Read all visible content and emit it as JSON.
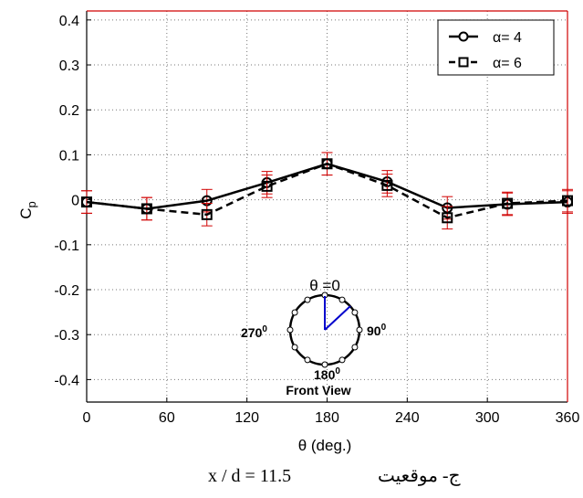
{
  "chart_data": {
    "type": "line",
    "xlabel": "θ (deg.)",
    "ylabel": "C",
    "ylabel_sub": "p",
    "xlim": [
      0,
      360
    ],
    "ylim": [
      -0.45,
      0.42
    ],
    "xticks": [
      0,
      60,
      120,
      180,
      240,
      300,
      360
    ],
    "xtick_labels": [
      "0",
      "60",
      "120",
      "180",
      "240",
      "300",
      "360"
    ],
    "yticks": [
      0.4,
      0.3,
      0.2,
      0.1,
      0,
      -0.1,
      -0.2,
      -0.3,
      -0.4
    ],
    "ytick_labels": [
      "0.4",
      "0.3",
      "0.2",
      "0.1",
      "0",
      "-0.1",
      "-0.2",
      "-0.3",
      "-0.4"
    ],
    "grid": true,
    "legend_position": "top-right",
    "series": [
      {
        "name": "α= 4",
        "marker": "circle",
        "line_style": "solid",
        "x": [
          0,
          45,
          90,
          135,
          180,
          225,
          270,
          315,
          360
        ],
        "y": [
          -0.005,
          -0.02,
          -0.002,
          0.038,
          0.08,
          0.04,
          -0.018,
          -0.01,
          -0.005
        ],
        "error": [
          0.025,
          0.025,
          0.025,
          0.025,
          0.025,
          0.025,
          0.025,
          0.025,
          0.025
        ]
      },
      {
        "name": "α= 6",
        "marker": "square",
        "line_style": "dashed",
        "x": [
          0,
          45,
          90,
          135,
          180,
          225,
          270,
          315,
          360
        ],
        "y": [
          -0.005,
          -0.02,
          -0.033,
          0.03,
          0.08,
          0.032,
          -0.04,
          -0.008,
          -0.002
        ],
        "error": [
          0.025,
          0.025,
          0.025,
          0.025,
          0.025,
          0.025,
          0.025,
          0.025,
          0.025
        ]
      }
    ],
    "colors": {
      "line": "#000000",
      "error_bar": "#d00000",
      "inset_radius": "#0000cc"
    },
    "inset": {
      "top_label": "θ =0",
      "right_label": "90",
      "left_label": "270",
      "bottom_label": "180",
      "degree_mark": "0",
      "caption": "Front View"
    }
  },
  "figure_caption": {
    "formula": "x / d = 11.5",
    "arabic_prefix": "ج- موقعيت"
  }
}
